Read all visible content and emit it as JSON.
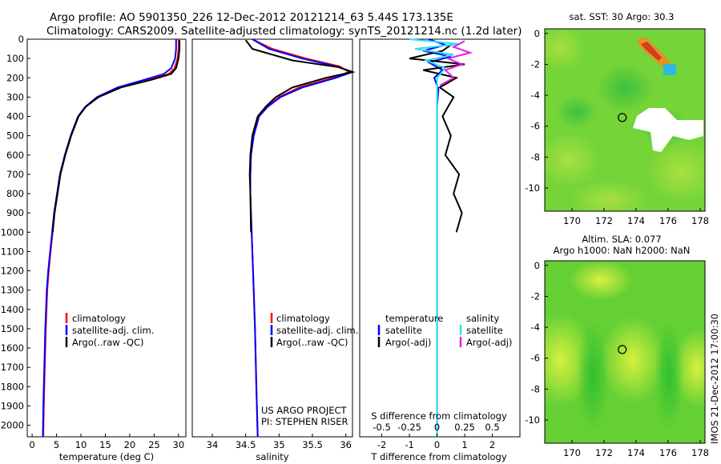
{
  "header": {
    "line1": "Argo profile: AO 5901350_226 12-Dec-2012 20121214_63 5.44S 173.135E",
    "line2": "Climatology: CARS2009. Satellite-adjusted climatology: synTS_20121214.nc (1.2d later)"
  },
  "colors": {
    "climatology": "#ff0000",
    "satellite": "#0000ff",
    "argo": "#000000",
    "sal_satellite": "#30e0f0",
    "sal_argo": "#e020e0",
    "map_green": "#60d030"
  },
  "legend": {
    "climatology": "climatology",
    "satellite_clim": "satellite-adj. clim.",
    "argo_raw": "Argo(..raw -QC)",
    "temperature_head": "temperature",
    "salinity_head": "salinity",
    "satellite": "satellite",
    "argo_adj": "Argo(-adj)"
  },
  "credits": {
    "project": "US ARGO PROJECT",
    "pi": "PI: STEPHEN RISER",
    "imos": "IMOS 21-Dec-2012 17:00:30"
  },
  "chart_data": [
    {
      "type": "line",
      "id": "temperature",
      "xlabel": "temperature (deg C)",
      "xlim": [
        -1,
        31.5
      ],
      "ylim": [
        2060,
        0
      ],
      "xticks": [
        0,
        5,
        10,
        15,
        20,
        25,
        30
      ],
      "yticks": [
        0,
        100,
        200,
        300,
        400,
        500,
        600,
        700,
        800,
        900,
        1000,
        1100,
        1200,
        1300,
        1400,
        1500,
        1600,
        1700,
        1800,
        1900,
        2000
      ],
      "series": [
        {
          "name": "climatology",
          "color": "#ff0000",
          "x": [
            30.0,
            30.0,
            29.8,
            29.2,
            28.0,
            24.0,
            18.0,
            13.5,
            11.0,
            9.5,
            8.0,
            6.8,
            5.8,
            5.2,
            4.6,
            4.2,
            3.8,
            3.4,
            3.1,
            2.8,
            2.6,
            2.4,
            2.3
          ],
          "y": [
            0,
            50,
            100,
            150,
            180,
            210,
            250,
            300,
            350,
            400,
            500,
            600,
            700,
            800,
            900,
            1000,
            1100,
            1200,
            1300,
            1500,
            1700,
            1900,
            2060
          ]
        },
        {
          "name": "satellite-adj. clim.",
          "color": "#0000ff",
          "x": [
            29.5,
            29.5,
            29.3,
            28.5,
            27.0,
            23.0,
            17.5,
            13.3,
            10.9,
            9.4,
            7.9,
            6.7,
            5.7,
            5.1,
            4.5,
            4.1,
            3.7,
            3.3,
            3.0,
            2.7,
            2.5,
            2.3,
            2.2
          ],
          "y": [
            0,
            50,
            100,
            150,
            180,
            210,
            250,
            300,
            350,
            400,
            500,
            600,
            700,
            800,
            900,
            1000,
            1100,
            1200,
            1300,
            1500,
            1700,
            1900,
            2060
          ]
        },
        {
          "name": "Argo(..raw -QC)",
          "color": "#000000",
          "x": [
            30.2,
            30.2,
            30.0,
            29.5,
            28.5,
            24.5,
            18.2,
            13.6,
            11.0,
            9.5,
            8.0,
            6.8,
            5.8,
            5.2,
            4.6,
            4.2
          ],
          "y": [
            5,
            50,
            100,
            150,
            180,
            210,
            250,
            300,
            350,
            400,
            500,
            600,
            700,
            800,
            900,
            1000
          ]
        }
      ]
    },
    {
      "type": "line",
      "id": "salinity",
      "xlabel": "salinity",
      "xlim": [
        33.7,
        36.1
      ],
      "ylim": [
        2060,
        0
      ],
      "xticks": [
        34,
        34.5,
        35,
        35.5,
        36
      ],
      "series": [
        {
          "name": "climatology",
          "color": "#ff0000",
          "x": [
            34.6,
            34.9,
            35.4,
            35.9,
            36.05,
            35.8,
            35.3,
            35.0,
            34.82,
            34.7,
            34.62,
            34.58,
            34.57,
            34.57,
            34.58,
            34.6,
            34.62,
            34.64,
            34.66,
            34.68
          ],
          "y": [
            0,
            50,
            100,
            140,
            170,
            200,
            250,
            300,
            350,
            400,
            500,
            600,
            700,
            800,
            900,
            1100,
            1300,
            1500,
            1800,
            2060
          ]
        },
        {
          "name": "satellite-adj. clim.",
          "color": "#0000ff",
          "x": [
            34.6,
            34.85,
            35.35,
            35.85,
            36.1,
            35.85,
            35.35,
            35.02,
            34.83,
            34.7,
            34.62,
            34.58,
            34.57,
            34.57,
            34.58,
            34.6,
            34.62,
            34.64,
            34.66,
            34.68
          ],
          "y": [
            0,
            50,
            100,
            140,
            170,
            200,
            250,
            300,
            350,
            400,
            500,
            600,
            700,
            800,
            900,
            1100,
            1300,
            1500,
            1800,
            2060
          ]
        },
        {
          "name": "Argo(..raw -QC)",
          "color": "#000000",
          "x": [
            34.5,
            34.6,
            35.2,
            35.9,
            36.1,
            35.7,
            35.2,
            34.95,
            34.8,
            34.68,
            34.6,
            34.57,
            34.56,
            34.57,
            34.58
          ],
          "y": [
            5,
            50,
            110,
            145,
            170,
            200,
            250,
            300,
            350,
            400,
            500,
            600,
            700,
            800,
            1000
          ]
        }
      ]
    },
    {
      "type": "line",
      "id": "difference",
      "xlabel": "T difference from climatology",
      "xlabel_top": "S difference from climatology",
      "xlim": [
        -2.8,
        3
      ],
      "ylim": [
        2060,
        0
      ],
      "xticks": [
        -2,
        -1,
        0,
        1,
        2
      ],
      "s_ticks": [
        -0.5,
        -0.25,
        0,
        0.25,
        0.5
      ],
      "series": [
        {
          "name": "temperature satellite",
          "color": "#0000ff",
          "x": [
            -0.3,
            0.3,
            -0.5,
            0.5,
            -0.3,
            0.2,
            -0.1,
            0.05,
            0.0,
            0.0,
            0.0,
            0.0,
            0.0
          ],
          "y": [
            0,
            30,
            60,
            90,
            120,
            160,
            200,
            260,
            350,
            600,
            1000,
            1500,
            2060
          ]
        },
        {
          "name": "temperature Argo(-adj)",
          "color": "#000000",
          "x": [
            0.6,
            0.2,
            -1.0,
            1.0,
            -0.5,
            0.7,
            0.1,
            0.6,
            0.2,
            0.5,
            0.3,
            0.8,
            0.6,
            0.9,
            0.7
          ],
          "y": [
            20,
            60,
            100,
            130,
            160,
            200,
            250,
            300,
            400,
            500,
            600,
            700,
            800,
            900,
            1000
          ]
        },
        {
          "name": "salinity satellite",
          "color": "#30e0f0",
          "x": [
            -1.0,
            0.8,
            -0.8,
            0.6,
            -0.4,
            0.3,
            0.0,
            0.0,
            0.0,
            0.0
          ],
          "y": [
            0,
            25,
            50,
            80,
            110,
            150,
            200,
            400,
            1000,
            2060
          ]
        },
        {
          "name": "salinity Argo(-adj)",
          "color": "#e020e0",
          "x": [
            1.0,
            0.6,
            1.2,
            0.4,
            0.9,
            0.3,
            0.6,
            0.1
          ],
          "y": [
            10,
            40,
            70,
            100,
            130,
            160,
            200,
            240
          ]
        }
      ]
    },
    {
      "type": "heatmap",
      "id": "sst_map",
      "title": "sat. SST: 30 Argo: 30.3",
      "xlim": [
        168.3,
        178.3
      ],
      "ylim": [
        -11.5,
        0.3
      ],
      "xticks": [
        170,
        172,
        174,
        176,
        178
      ],
      "yticks": [
        0,
        -2,
        -4,
        -6,
        -8,
        -10
      ],
      "marker": {
        "x": 173.135,
        "y": -5.44
      }
    },
    {
      "type": "heatmap",
      "id": "sla_map",
      "title": "Altim. SLA: 0.077",
      "subtitle": "Argo h1000: NaN h2000: NaN",
      "xlim": [
        168.3,
        178.3
      ],
      "ylim": [
        -11.5,
        0.3
      ],
      "xticks": [
        170,
        172,
        174,
        176,
        178
      ],
      "yticks": [
        0,
        -2,
        -4,
        -6,
        -8,
        -10
      ],
      "marker": {
        "x": 173.135,
        "y": -5.44
      }
    }
  ]
}
